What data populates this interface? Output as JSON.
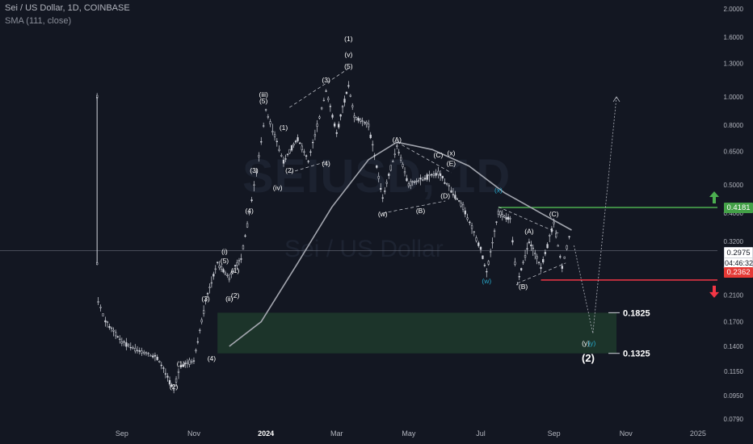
{
  "header": {
    "title": "Sei / US Dollar, 1D, COINBASE",
    "indicator": "SMA (111, close)"
  },
  "watermark": {
    "symbol": "SEIUSD, 1D",
    "name": "Sei / US Dollar"
  },
  "price_tags": {
    "target": "0.4181",
    "current": "0.2975",
    "countdown": "04:46:32",
    "stop": "0.2362"
  },
  "colors": {
    "background": "#131722",
    "candle": "#d1d4dc",
    "sma": "#a3a6af",
    "target_line": "#4caf50",
    "stop_line": "#f23645",
    "zone_fill": "#1f3a2c",
    "wave_teal": "#26a6c8"
  },
  "chart_data": {
    "type": "candlestick",
    "title": "Sei / US Dollar, 1D, COINBASE",
    "y_scale": "log",
    "ylim": [
      0.079,
      2.0
    ],
    "y_ticks": [
      "2.0000",
      "1.6000",
      "1.3000",
      "1.0000",
      "0.8000",
      "0.6500",
      "0.5000",
      "0.4000",
      "0.3200",
      "0.2600",
      "0.2100",
      "0.1700",
      "0.1400",
      "0.1150",
      "0.0950",
      "0.0790"
    ],
    "x_ticks": [
      "Sep",
      "Nov",
      "2024",
      "Mar",
      "May",
      "Jul",
      "Sep",
      "Nov",
      "2025"
    ],
    "price_path": [
      [
        "2023-08-15",
        1.0
      ],
      [
        "2023-08-15",
        0.27
      ],
      [
        "2023-08-16",
        0.2
      ],
      [
        "2023-08-22",
        0.17
      ],
      [
        "2023-09-05",
        0.145
      ],
      [
        "2023-09-20",
        0.135
      ],
      [
        "2023-10-05",
        0.128
      ],
      [
        "2023-10-19",
        0.1
      ],
      [
        "2023-10-25",
        0.12
      ],
      [
        "2023-11-05",
        0.125
      ],
      [
        "2023-11-15",
        0.2
      ],
      [
        "2023-11-25",
        0.27
      ],
      [
        "2023-12-05",
        0.24
      ],
      [
        "2023-12-15",
        0.28
      ],
      [
        "2023-12-22",
        0.4
      ],
      [
        "2023-12-28",
        0.55
      ],
      [
        "2024-01-03",
        0.8
      ],
      [
        "2024-01-05",
        0.9
      ],
      [
        "2024-01-20",
        0.6
      ],
      [
        "2024-02-01",
        0.72
      ],
      [
        "2024-02-10",
        0.6
      ],
      [
        "2024-02-25",
        1.05
      ],
      [
        "2024-03-05",
        0.75
      ],
      [
        "2024-03-15",
        1.1
      ],
      [
        "2024-03-20",
        0.85
      ],
      [
        "2024-04-01",
        0.8
      ],
      [
        "2024-04-13",
        0.45
      ],
      [
        "2024-04-25",
        0.68
      ],
      [
        "2024-05-05",
        0.5
      ],
      [
        "2024-05-15",
        0.52
      ],
      [
        "2024-05-30",
        0.55
      ],
      [
        "2024-06-10",
        0.48
      ],
      [
        "2024-06-20",
        0.42
      ],
      [
        "2024-07-05",
        0.3
      ],
      [
        "2024-07-10",
        0.25
      ],
      [
        "2024-07-20",
        0.4
      ],
      [
        "2024-07-30",
        0.38
      ],
      [
        "2024-08-05",
        0.23
      ],
      [
        "2024-08-15",
        0.32
      ],
      [
        "2024-08-25",
        0.26
      ],
      [
        "2024-09-05",
        0.37
      ],
      [
        "2024-09-12",
        0.26
      ],
      [
        "2024-09-18",
        0.33
      ],
      [
        "2024-09-20",
        0.2975
      ]
    ],
    "sma": {
      "name": "SMA (111, close)",
      "points": [
        [
          "2023-12-05",
          0.14
        ],
        [
          "2024-01-01",
          0.17
        ],
        [
          "2024-02-01",
          0.27
        ],
        [
          "2024-03-01",
          0.42
        ],
        [
          "2024-04-01",
          0.61
        ],
        [
          "2024-04-25",
          0.7
        ],
        [
          "2024-05-25",
          0.66
        ],
        [
          "2024-06-25",
          0.58
        ],
        [
          "2024-07-25",
          0.47
        ],
        [
          "2024-08-25",
          0.4
        ],
        [
          "2024-09-20",
          0.35
        ]
      ]
    },
    "projection": [
      [
        "2024-09-22",
        0.31
      ],
      [
        "2024-10-08",
        0.155
      ],
      [
        "2024-10-28",
        1.0
      ]
    ],
    "levels": [
      {
        "label": "0.4181",
        "value": 0.4181,
        "kind": "target"
      },
      {
        "label": "0.2362",
        "value": 0.2362,
        "kind": "stop"
      },
      {
        "label": "0.1825",
        "value": 0.1825,
        "kind": "zone-top"
      },
      {
        "label": "0.1325",
        "value": 0.1325,
        "kind": "zone-bottom"
      }
    ],
    "zone": {
      "x_start": "2023-11-25",
      "x_end": "2024-10-28",
      "low": 0.1325,
      "high": 0.1825
    },
    "wave_labels": [
      {
        "text": "(1)",
        "x": "2023-10-25",
        "y": 0.12
      },
      {
        "text": "(2)",
        "x": "2023-10-19",
        "y": 0.1
      },
      {
        "text": "(3)",
        "x": "2023-11-15",
        "y": 0.2
      },
      {
        "text": "(4)",
        "x": "2023-11-20",
        "y": 0.125
      },
      {
        "text": "(i)",
        "x": "2023-12-01",
        "y": 0.29
      },
      {
        "text": "(5)",
        "x": "2023-12-01",
        "y": 0.27
      },
      {
        "text": "(ii)",
        "x": "2023-12-05",
        "y": 0.2
      },
      {
        "text": "(2)",
        "x": "2023-12-10",
        "y": 0.205
      },
      {
        "text": "(1)",
        "x": "2023-12-10",
        "y": 0.25
      },
      {
        "text": "(4)",
        "x": "2023-12-22",
        "y": 0.4
      },
      {
        "text": "(3)",
        "x": "2023-12-26",
        "y": 0.55
      },
      {
        "text": "(iii)",
        "x": "2024-01-03",
        "y": 1.0
      },
      {
        "text": "(5)",
        "x": "2024-01-03",
        "y": 0.95
      },
      {
        "text": "(1)",
        "x": "2024-01-20",
        "y": 0.77
      },
      {
        "text": "(2)",
        "x": "2024-01-25",
        "y": 0.55
      },
      {
        "text": "(iv)",
        "x": "2024-01-15",
        "y": 0.48
      },
      {
        "text": "(3)",
        "x": "2024-02-25",
        "y": 1.12
      },
      {
        "text": "(4)",
        "x": "2024-02-25",
        "y": 0.58
      },
      {
        "text": "(5)",
        "x": "2024-03-15",
        "y": 1.25
      },
      {
        "text": "(v)",
        "x": "2024-03-15",
        "y": 1.37
      },
      {
        "text": "(1)",
        "x": "2024-03-15",
        "y": 1.55
      },
      {
        "text": "(A)",
        "x": "2024-04-25",
        "y": 0.7
      },
      {
        "text": "(w)",
        "x": "2024-04-13",
        "y": 0.39
      },
      {
        "text": "(B)",
        "x": "2024-05-15",
        "y": 0.4
      },
      {
        "text": "(C)",
        "x": "2024-05-30",
        "y": 0.62
      },
      {
        "text": "(x)",
        "x": "2024-06-10",
        "y": 0.63
      },
      {
        "text": "(E)",
        "x": "2024-06-10",
        "y": 0.58
      },
      {
        "text": "(D)",
        "x": "2024-06-05",
        "y": 0.45
      },
      {
        "text": "(x)",
        "x": "2024-07-20",
        "y": 0.47,
        "color": "teal"
      },
      {
        "text": "(w)",
        "x": "2024-07-10",
        "y": 0.23,
        "color": "teal"
      },
      {
        "text": "(A)",
        "x": "2024-08-15",
        "y": 0.34
      },
      {
        "text": "(B)",
        "x": "2024-08-10",
        "y": 0.22
      },
      {
        "text": "(C)",
        "x": "2024-09-05",
        "y": 0.39
      },
      {
        "text": "(y)",
        "x": "2024-10-02",
        "y": 0.141
      },
      {
        "text": "(y)",
        "x": "2024-10-07",
        "y": 0.141,
        "color": "teal"
      },
      {
        "text": "(2)",
        "x": "2024-10-04",
        "y": 0.124,
        "size": "large"
      }
    ]
  }
}
